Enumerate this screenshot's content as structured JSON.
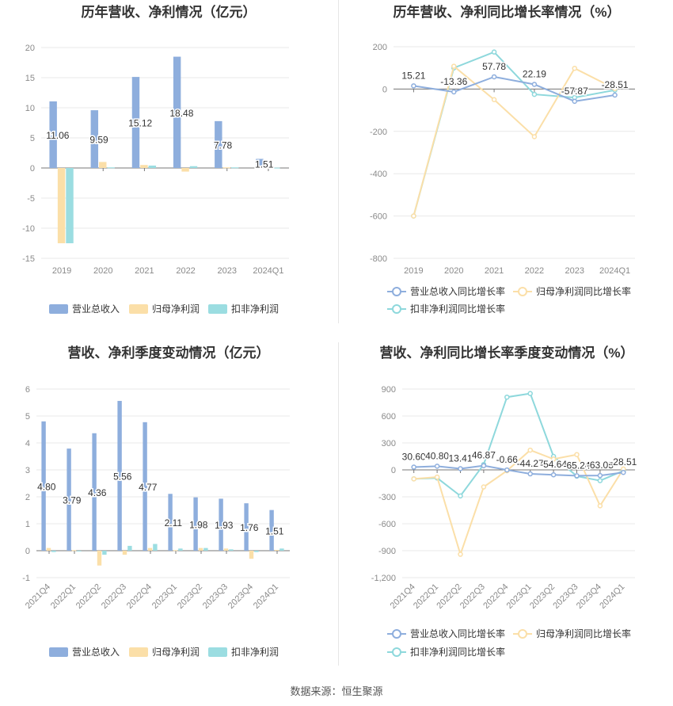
{
  "colors": {
    "revenue": "#8eaedd",
    "net_profit": "#fbdfa8",
    "deducted_profit": "#9bdde1",
    "revenue_line": "#8eaedd",
    "net_profit_line": "#fbdfa8",
    "deducted_profit_line": "#8ed8dc",
    "grid": "#e8e8e8",
    "axis_text": "#8a8a8a",
    "title": "#333333"
  },
  "source_text": "数据来源：恒生聚源",
  "chart_data": [
    {
      "type": "bar",
      "title": "历年营收、净利情况（亿元）",
      "categories": [
        "2019",
        "2020",
        "2021",
        "2022",
        "2023",
        "2024Q1"
      ],
      "ylim": [
        -15,
        20
      ],
      "yticks": [
        20,
        15,
        10,
        5,
        0,
        -5,
        -10,
        -15
      ],
      "grid": true,
      "legend_position": "bottom",
      "series": [
        {
          "name": "营业总收入",
          "values": [
            11.06,
            9.59,
            15.12,
            18.48,
            7.78,
            1.51
          ]
        },
        {
          "name": "归母净利润",
          "values": [
            -12.5,
            1.0,
            0.5,
            -0.6,
            0.1,
            0.05
          ]
        },
        {
          "name": "扣非净利润",
          "values": [
            -12.5,
            0.1,
            0.4,
            0.3,
            0.1,
            0.05
          ]
        }
      ],
      "data_labels": [
        "11.06",
        "9.59",
        "15.12",
        "18.48",
        "7.78",
        "1.51"
      ]
    },
    {
      "type": "line",
      "title": "历年营收、净利同比增长率情况（%）",
      "categories": [
        "2019",
        "2020",
        "2021",
        "2022",
        "2023",
        "2024Q1"
      ],
      "ylim": [
        -800,
        200
      ],
      "yticks": [
        200,
        0,
        -200,
        -400,
        -600,
        -800
      ],
      "grid": true,
      "legend_position": "bottom",
      "series": [
        {
          "name": "营业总收入同比增长率",
          "values": [
            15.21,
            -13.36,
            57.78,
            22.19,
            -57.87,
            -28.51
          ]
        },
        {
          "name": "归母净利润同比增长率",
          "values": [
            -600,
            108,
            -50,
            -225,
            98,
            2
          ]
        },
        {
          "name": "扣非净利润同比增长率",
          "values": [
            -600,
            100,
            175,
            -25,
            -40,
            -5
          ]
        }
      ],
      "data_labels": [
        "15.21",
        "-13.36",
        "57.78",
        "22.19",
        "-57.87",
        "-28.51"
      ]
    },
    {
      "type": "bar",
      "title": "营收、净利季度变动情况（亿元）",
      "categories": [
        "2021Q4",
        "2022Q1",
        "2022Q2",
        "2022Q3",
        "2022Q4",
        "2023Q1",
        "2023Q2",
        "2023Q3",
        "2023Q4",
        "2024Q1"
      ],
      "ylim": [
        -1,
        6
      ],
      "yticks": [
        6,
        5,
        4,
        3,
        2,
        1,
        0,
        -1
      ],
      "grid": true,
      "legend_position": "bottom",
      "series": [
        {
          "name": "营业总收入",
          "values": [
            4.8,
            3.79,
            4.36,
            5.56,
            4.77,
            2.11,
            1.98,
            1.93,
            1.76,
            1.51
          ]
        },
        {
          "name": "归母净利润",
          "values": [
            0.1,
            0.02,
            -0.55,
            -0.15,
            0.1,
            0.02,
            0.1,
            0.08,
            -0.3,
            0.03
          ]
        },
        {
          "name": "扣非净利润",
          "values": [
            -0.05,
            0.0,
            -0.15,
            0.18,
            0.25,
            0.08,
            0.1,
            0.05,
            -0.05,
            0.08
          ]
        }
      ],
      "data_labels": [
        "4.80",
        "3.79",
        "4.36",
        "5.56",
        "4.77",
        "2.11",
        "1.98",
        "1.93",
        "1.76",
        "1.51"
      ]
    },
    {
      "type": "line",
      "title": "营收、净利同比增长率季度变动情况（%）",
      "categories": [
        "2021Q4",
        "2022Q1",
        "2022Q2",
        "2022Q3",
        "2022Q4",
        "2023Q1",
        "2023Q2",
        "2023Q3",
        "2023Q4",
        "2024Q1"
      ],
      "ylim": [
        -1200,
        900
      ],
      "yticks": [
        900,
        600,
        300,
        0,
        -300,
        -600,
        -900,
        -1200
      ],
      "grid": true,
      "legend_position": "bottom",
      "series": [
        {
          "name": "营业总收入同比增长率",
          "values": [
            30.6,
            40.8,
            13.41,
            46.87,
            -0.66,
            -44.27,
            -54.64,
            -65.24,
            -63.05,
            -28.51
          ]
        },
        {
          "name": "归母净利润同比增长率",
          "values": [
            -100,
            -80,
            -940,
            -190,
            -10,
            220,
            120,
            170,
            -400,
            10
          ]
        },
        {
          "name": "扣非净利润同比增长率",
          "values": [
            -100,
            -90,
            -290,
            60,
            810,
            850,
            150,
            -70,
            -120,
            -10
          ]
        }
      ],
      "data_labels": [
        "30.60",
        "40.80",
        "13.41",
        "46.87",
        "-0.66",
        "-44.27",
        "-54.64",
        "-65.24",
        "-63.05",
        "-28.51"
      ]
    }
  ]
}
